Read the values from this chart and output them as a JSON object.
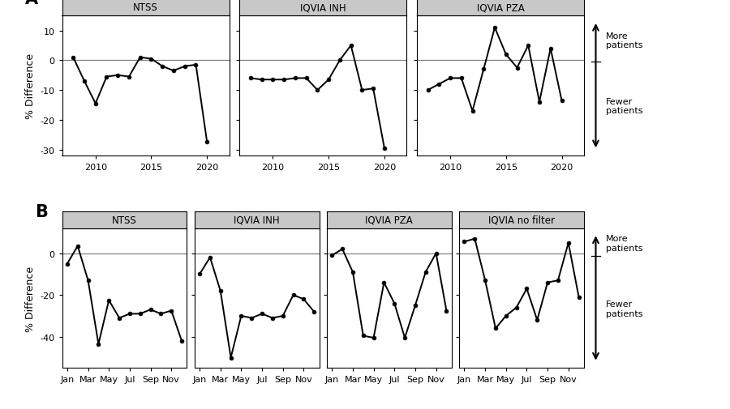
{
  "panel_A": {
    "titles": [
      "NTSS",
      "IQVIA INH",
      "IQVIA PZA"
    ],
    "xlim": [
      2007,
      2022
    ],
    "ylim": [
      -32,
      15
    ],
    "yticks": [
      -30,
      -20,
      -10,
      0,
      10
    ],
    "xticks": [
      2010,
      2015,
      2020
    ],
    "series": {
      "NTSS": {
        "x": [
          2008,
          2009,
          2010,
          2011,
          2012,
          2013,
          2014,
          2015,
          2016,
          2017,
          2018,
          2019,
          2020
        ],
        "y": [
          1.0,
          -7.0,
          -14.5,
          -5.5,
          -5.0,
          -5.5,
          1.0,
          0.5,
          -2.0,
          -3.5,
          -2.0,
          -1.5,
          -27.5
        ]
      },
      "IQVIA_INH": {
        "x": [
          2008,
          2009,
          2010,
          2011,
          2012,
          2013,
          2014,
          2015,
          2016,
          2017,
          2018,
          2019,
          2020
        ],
        "y": [
          -6.0,
          -6.5,
          -6.5,
          -6.5,
          -6.0,
          -6.0,
          -10.0,
          -6.5,
          0.0,
          5.0,
          -10.0,
          -9.5,
          -29.5
        ]
      },
      "IQVIA_PZA": {
        "x": [
          2008,
          2009,
          2010,
          2011,
          2012,
          2013,
          2014,
          2015,
          2016,
          2017,
          2018,
          2019,
          2020
        ],
        "y": [
          -10.0,
          -8.0,
          -6.0,
          -6.0,
          -17.0,
          -3.0,
          11.0,
          2.0,
          -2.5,
          5.0,
          -14.0,
          4.0,
          -13.5
        ]
      }
    }
  },
  "panel_B": {
    "titles": [
      "NTSS",
      "IQVIA INH",
      "IQVIA PZA",
      "IQVIA no filter"
    ],
    "xlabels": [
      "Jan",
      "Mar",
      "May",
      "Jul",
      "Sep",
      "Nov"
    ],
    "xtick_pos": [
      0,
      2,
      4,
      6,
      8,
      10
    ],
    "ylim": [
      -55,
      12
    ],
    "yticks": [
      -40,
      -20,
      0
    ],
    "series": {
      "NTSS": {
        "x": [
          0,
          1,
          2,
          3,
          4,
          5,
          6,
          7,
          8,
          9,
          10,
          11
        ],
        "y": [
          -5.0,
          3.5,
          -13.0,
          -43.5,
          -22.5,
          -31.0,
          -29.0,
          -29.0,
          -27.0,
          -29.0,
          -27.5,
          -42.0
        ]
      },
      "IQVIA_INH": {
        "x": [
          0,
          1,
          2,
          3,
          4,
          5,
          6,
          7,
          8,
          9,
          10,
          11
        ],
        "y": [
          -10.0,
          -2.0,
          -18.0,
          -50.0,
          -30.0,
          -31.0,
          -29.0,
          -31.0,
          -30.0,
          -20.0,
          -22.0,
          -28.0
        ]
      },
      "IQVIA_PZA": {
        "x": [
          0,
          1,
          2,
          3,
          4,
          5,
          6,
          7,
          8,
          9,
          10,
          11
        ],
        "y": [
          -1.0,
          2.0,
          -9.0,
          -39.5,
          -40.5,
          -14.0,
          -24.0,
          -40.5,
          -25.0,
          -9.0,
          0.0,
          -27.5
        ]
      },
      "IQVIA_no_filter": {
        "x": [
          0,
          1,
          2,
          3,
          4,
          5,
          6,
          7,
          8,
          9,
          10,
          11
        ],
        "y": [
          5.5,
          7.0,
          -13.0,
          -36.0,
          -30.0,
          -26.0,
          -17.0,
          -32.0,
          -14.0,
          -13.0,
          5.0,
          -21.0
        ]
      }
    }
  },
  "ylabel": "% Difference",
  "line_color": "#000000",
  "marker": "o",
  "markersize": 3.5,
  "linewidth": 1.4,
  "facet_bg": "#c8c8c8",
  "hline_color": "#808080",
  "hline_lw": 0.9
}
